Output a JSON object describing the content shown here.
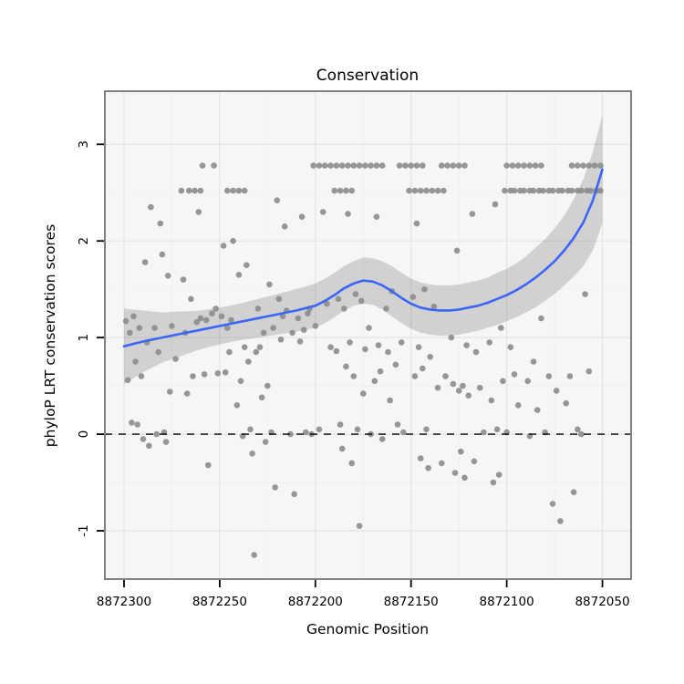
{
  "chart_data": {
    "type": "scatter",
    "title": "Conservation",
    "xlabel": "Genomic Position",
    "ylabel": "phyloP LRT conservation scores",
    "x_ticks": [
      8872300,
      8872250,
      8872200,
      8872150,
      8872100,
      8872050
    ],
    "y_ticks": [
      -1,
      0,
      1,
      2,
      3
    ],
    "xlim": [
      8872310,
      8872035
    ],
    "ylim": [
      -1.5,
      3.55
    ],
    "x_axis_reversed": true,
    "grid": true,
    "legend": "none",
    "reference_line_y": 0,
    "colors": {
      "point": "#8c8c8c",
      "smooth_line": "#3b66f5",
      "ribbon": "#000000",
      "ribbon_opacity": 0.15,
      "panel_bg": "#f6f6f6",
      "grid_major": "#e4e4e4",
      "grid_minor": "#efefef",
      "panel_border": "#808080",
      "dashed_line": "#000000",
      "tick": "#000000"
    },
    "smooth": {
      "x": [
        8872300,
        8872290,
        8872280,
        8872270,
        8872260,
        8872250,
        8872240,
        8872230,
        8872220,
        8872210,
        8872200,
        8872195,
        8872190,
        8872185,
        8872180,
        8872175,
        8872170,
        8872165,
        8872160,
        8872155,
        8872150,
        8872145,
        8872140,
        8872135,
        8872130,
        8872125,
        8872120,
        8872115,
        8872110,
        8872105,
        8872100,
        8872095,
        8872090,
        8872085,
        8872080,
        8872075,
        8872070,
        8872065,
        8872060,
        8872055,
        8872050
      ],
      "y": [
        0.91,
        0.96,
        1.0,
        1.04,
        1.08,
        1.12,
        1.16,
        1.2,
        1.24,
        1.28,
        1.33,
        1.38,
        1.44,
        1.51,
        1.56,
        1.59,
        1.58,
        1.54,
        1.48,
        1.41,
        1.35,
        1.31,
        1.29,
        1.28,
        1.28,
        1.29,
        1.31,
        1.33,
        1.36,
        1.4,
        1.44,
        1.49,
        1.55,
        1.62,
        1.7,
        1.79,
        1.9,
        2.03,
        2.19,
        2.42,
        2.74
      ],
      "lo": [
        0.52,
        0.64,
        0.74,
        0.81,
        0.88,
        0.93,
        0.97,
        1.0,
        1.03,
        1.06,
        1.1,
        1.15,
        1.21,
        1.28,
        1.33,
        1.35,
        1.34,
        1.29,
        1.22,
        1.15,
        1.09,
        1.05,
        1.03,
        1.02,
        1.02,
        1.03,
        1.05,
        1.07,
        1.1,
        1.13,
        1.17,
        1.21,
        1.26,
        1.31,
        1.38,
        1.45,
        1.54,
        1.63,
        1.74,
        1.9,
        2.18
      ],
      "hi": [
        1.3,
        1.28,
        1.26,
        1.27,
        1.28,
        1.31,
        1.35,
        1.4,
        1.45,
        1.5,
        1.56,
        1.61,
        1.67,
        1.74,
        1.79,
        1.83,
        1.82,
        1.79,
        1.74,
        1.67,
        1.61,
        1.57,
        1.55,
        1.54,
        1.54,
        1.55,
        1.57,
        1.59,
        1.62,
        1.67,
        1.71,
        1.77,
        1.84,
        1.93,
        2.02,
        2.13,
        2.26,
        2.43,
        2.64,
        2.92,
        3.3
      ]
    },
    "points": [
      [
        8872259,
        2.78
      ],
      [
        8872253,
        2.78
      ],
      [
        8872201,
        2.78
      ],
      [
        8872198,
        2.78
      ],
      [
        8872195,
        2.78
      ],
      [
        8872192,
        2.78
      ],
      [
        8872189,
        2.78
      ],
      [
        8872186,
        2.78
      ],
      [
        8872183,
        2.78
      ],
      [
        8872180,
        2.78
      ],
      [
        8872177,
        2.78
      ],
      [
        8872174,
        2.78
      ],
      [
        8872171,
        2.78
      ],
      [
        8872168,
        2.78
      ],
      [
        8872165,
        2.78
      ],
      [
        8872156,
        2.78
      ],
      [
        8872153,
        2.78
      ],
      [
        8872150,
        2.78
      ],
      [
        8872147,
        2.78
      ],
      [
        8872144,
        2.78
      ],
      [
        8872134,
        2.78
      ],
      [
        8872131,
        2.78
      ],
      [
        8872128,
        2.78
      ],
      [
        8872125,
        2.78
      ],
      [
        8872122,
        2.78
      ],
      [
        8872100,
        2.78
      ],
      [
        8872097,
        2.78
      ],
      [
        8872094,
        2.78
      ],
      [
        8872091,
        2.78
      ],
      [
        8872088,
        2.78
      ],
      [
        8872085,
        2.78
      ],
      [
        8872082,
        2.78
      ],
      [
        8872066,
        2.78
      ],
      [
        8872063,
        2.78
      ],
      [
        8872060,
        2.78
      ],
      [
        8872057,
        2.78
      ],
      [
        8872054,
        2.78
      ],
      [
        8872051,
        2.78
      ],
      [
        8872270,
        2.52
      ],
      [
        8872266,
        2.52
      ],
      [
        8872263,
        2.52
      ],
      [
        8872260,
        2.52
      ],
      [
        8872246,
        2.52
      ],
      [
        8872243,
        2.52
      ],
      [
        8872240,
        2.52
      ],
      [
        8872237,
        2.52
      ],
      [
        8872190,
        2.52
      ],
      [
        8872187,
        2.52
      ],
      [
        8872184,
        2.52
      ],
      [
        8872181,
        2.52
      ],
      [
        8872151,
        2.52
      ],
      [
        8872148,
        2.52
      ],
      [
        8872145,
        2.52
      ],
      [
        8872142,
        2.52
      ],
      [
        8872139,
        2.52
      ],
      [
        8872136,
        2.52
      ],
      [
        8872133,
        2.52
      ],
      [
        8872101,
        2.52
      ],
      [
        8872098,
        2.52
      ],
      [
        8872096,
        2.52
      ],
      [
        8872093,
        2.52
      ],
      [
        8872091,
        2.52
      ],
      [
        8872088,
        2.52
      ],
      [
        8872086,
        2.52
      ],
      [
        8872083,
        2.52
      ],
      [
        8872081,
        2.52
      ],
      [
        8872078,
        2.52
      ],
      [
        8872076,
        2.52
      ],
      [
        8872073,
        2.52
      ],
      [
        8872071,
        2.52
      ],
      [
        8872068,
        2.52
      ],
      [
        8872066,
        2.52
      ],
      [
        8872063,
        2.52
      ],
      [
        8872061,
        2.52
      ],
      [
        8872058,
        2.52
      ],
      [
        8872056,
        2.52
      ],
      [
        8872053,
        2.52
      ],
      [
        8872051,
        2.52
      ],
      [
        8872299,
        1.17
      ],
      [
        8872298,
        0.56
      ],
      [
        8872297,
        1.05
      ],
      [
        8872296,
        0.12
      ],
      [
        8872295,
        1.22
      ],
      [
        8872294,
        0.75
      ],
      [
        8872293,
        0.1
      ],
      [
        8872292,
        1.1
      ],
      [
        8872291,
        0.6
      ],
      [
        8872290,
        -0.05
      ],
      [
        8872289,
        1.78
      ],
      [
        8872288,
        0.95
      ],
      [
        8872287,
        -0.12
      ],
      [
        8872286,
        2.35
      ],
      [
        8872284,
        1.1
      ],
      [
        8872283,
        0.0
      ],
      [
        8872282,
        0.85
      ],
      [
        8872281,
        2.18
      ],
      [
        8872280,
        1.86
      ],
      [
        8872279,
        0.02
      ],
      [
        8872278,
        -0.08
      ],
      [
        8872277,
        1.64
      ],
      [
        8872276,
        0.44
      ],
      [
        8872275,
        1.12
      ],
      [
        8872273,
        0.78
      ],
      [
        8872269,
        1.6
      ],
      [
        8872268,
        1.05
      ],
      [
        8872267,
        0.42
      ],
      [
        8872265,
        1.4
      ],
      [
        8872264,
        0.6
      ],
      [
        8872262,
        1.16
      ],
      [
        8872261,
        2.3
      ],
      [
        8872260,
        1.2
      ],
      [
        8872258,
        0.62
      ],
      [
        8872257,
        1.18
      ],
      [
        8872256,
        -0.32
      ],
      [
        8872254,
        1.25
      ],
      [
        8872252,
        1.3
      ],
      [
        8872251,
        0.63
      ],
      [
        8872249,
        1.22
      ],
      [
        8872248,
        1.95
      ],
      [
        8872247,
        0.64
      ],
      [
        8872246,
        1.1
      ],
      [
        8872245,
        0.85
      ],
      [
        8872244,
        1.18
      ],
      [
        8872243,
        2.0
      ],
      [
        8872241,
        0.3
      ],
      [
        8872240,
        1.65
      ],
      [
        8872239,
        0.55
      ],
      [
        8872238,
        -0.02
      ],
      [
        8872237,
        0.9
      ],
      [
        8872236,
        1.75
      ],
      [
        8872235,
        0.75
      ],
      [
        8872234,
        0.05
      ],
      [
        8872233,
        -0.2
      ],
      [
        8872232,
        -1.25
      ],
      [
        8872231,
        0.85
      ],
      [
        8872230,
        1.3
      ],
      [
        8872229,
        0.9
      ],
      [
        8872228,
        0.38
      ],
      [
        8872227,
        1.05
      ],
      [
        8872226,
        -0.08
      ],
      [
        8872225,
        0.5
      ],
      [
        8872224,
        1.55
      ],
      [
        8872223,
        0.02
      ],
      [
        8872222,
        1.1
      ],
      [
        8872221,
        -0.55
      ],
      [
        8872220,
        2.42
      ],
      [
        8872219,
        1.4
      ],
      [
        8872218,
        0.98
      ],
      [
        8872217,
        1.22
      ],
      [
        8872216,
        2.15
      ],
      [
        8872215,
        1.28
      ],
      [
        8872213,
        0.0
      ],
      [
        8872212,
        1.05
      ],
      [
        8872211,
        -0.62
      ],
      [
        8872209,
        1.2
      ],
      [
        8872208,
        0.96
      ],
      [
        8872207,
        2.25
      ],
      [
        8872206,
        1.08
      ],
      [
        8872205,
        0.02
      ],
      [
        8872204,
        1.25
      ],
      [
        8872203,
        1.3
      ],
      [
        8872202,
        0.0
      ],
      [
        8872200,
        1.12
      ],
      [
        8872198,
        0.05
      ],
      [
        8872196,
        2.3
      ],
      [
        8872194,
        1.35
      ],
      [
        8872192,
        0.9
      ],
      [
        8872189,
        0.86
      ],
      [
        8872188,
        1.4
      ],
      [
        8872187,
        0.1
      ],
      [
        8872186,
        -0.15
      ],
      [
        8872185,
        1.3
      ],
      [
        8872184,
        0.7
      ],
      [
        8872183,
        2.28
      ],
      [
        8872182,
        0.95
      ],
      [
        8872181,
        -0.3
      ],
      [
        8872180,
        0.6
      ],
      [
        8872179,
        1.45
      ],
      [
        8872178,
        0.05
      ],
      [
        8872177,
        -0.95
      ],
      [
        8872176,
        1.38
      ],
      [
        8872175,
        0.42
      ],
      [
        8872174,
        0.88
      ],
      [
        8872172,
        1.1
      ],
      [
        8872171,
        0.0
      ],
      [
        8872169,
        0.55
      ],
      [
        8872168,
        2.25
      ],
      [
        8872167,
        0.92
      ],
      [
        8872166,
        0.65
      ],
      [
        8872165,
        -0.05
      ],
      [
        8872163,
        1.3
      ],
      [
        8872162,
        0.85
      ],
      [
        8872161,
        0.35
      ],
      [
        8872160,
        1.48
      ],
      [
        8872158,
        0.72
      ],
      [
        8872157,
        0.1
      ],
      [
        8872155,
        0.95
      ],
      [
        8872154,
        0.02
      ],
      [
        8872149,
        1.42
      ],
      [
        8872148,
        0.6
      ],
      [
        8872147,
        2.18
      ],
      [
        8872146,
        0.9
      ],
      [
        8872145,
        -0.25
      ],
      [
        8872144,
        0.68
      ],
      [
        8872143,
        1.5
      ],
      [
        8872142,
        0.05
      ],
      [
        8872141,
        -0.35
      ],
      [
        8872140,
        0.8
      ],
      [
        8872138,
        1.32
      ],
      [
        8872136,
        0.48
      ],
      [
        8872134,
        -0.3
      ],
      [
        8872132,
        0.6
      ],
      [
        8872129,
        1.0
      ],
      [
        8872128,
        0.52
      ],
      [
        8872127,
        -0.4
      ],
      [
        8872126,
        1.9
      ],
      [
        8872125,
        0.45
      ],
      [
        8872124,
        -0.18
      ],
      [
        8872123,
        0.5
      ],
      [
        8872122,
        -0.45
      ],
      [
        8872121,
        0.92
      ],
      [
        8872120,
        0.4
      ],
      [
        8872118,
        2.28
      ],
      [
        8872117,
        -0.28
      ],
      [
        8872116,
        0.85
      ],
      [
        8872114,
        0.48
      ],
      [
        8872112,
        0.02
      ],
      [
        8872109,
        0.95
      ],
      [
        8872108,
        0.35
      ],
      [
        8872107,
        -0.5
      ],
      [
        8872106,
        2.38
      ],
      [
        8872105,
        0.05
      ],
      [
        8872104,
        -0.42
      ],
      [
        8872103,
        1.1
      ],
      [
        8872102,
        0.55
      ],
      [
        8872100,
        0.02
      ],
      [
        8872098,
        0.9
      ],
      [
        8872096,
        0.62
      ],
      [
        8872094,
        0.3
      ],
      [
        8872089,
        0.55
      ],
      [
        8872088,
        -0.02
      ],
      [
        8872086,
        0.75
      ],
      [
        8872084,
        0.25
      ],
      [
        8872082,
        1.2
      ],
      [
        8872080,
        0.02
      ],
      [
        8872078,
        0.6
      ],
      [
        8872076,
        -0.72
      ],
      [
        8872074,
        0.45
      ],
      [
        8872072,
        -0.9
      ],
      [
        8872069,
        0.32
      ],
      [
        8872067,
        0.6
      ],
      [
        8872065,
        -0.6
      ],
      [
        8872063,
        0.05
      ],
      [
        8872061,
        0.0
      ],
      [
        8872059,
        1.45
      ],
      [
        8872057,
        0.65
      ]
    ]
  }
}
